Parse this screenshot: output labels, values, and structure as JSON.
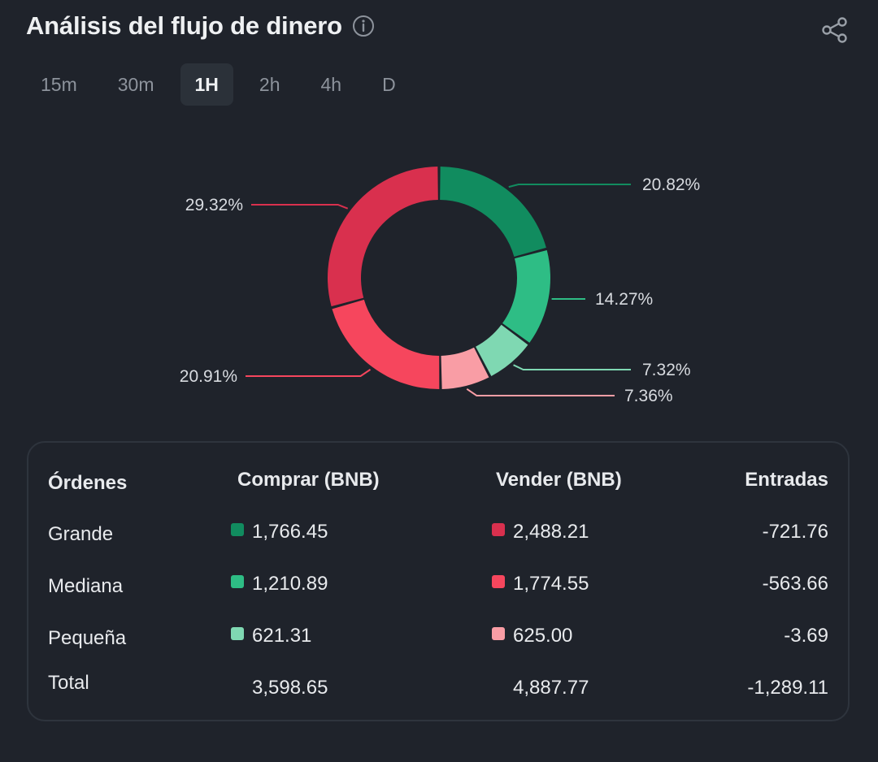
{
  "header": {
    "title": "Análisis del flujo de dinero",
    "info_icon": "info-icon",
    "share_icon": "share-icon"
  },
  "tabs": [
    {
      "label": "15m",
      "active": false
    },
    {
      "label": "30m",
      "active": false
    },
    {
      "label": "1H",
      "active": true
    },
    {
      "label": "2h",
      "active": false
    },
    {
      "label": "4h",
      "active": false
    },
    {
      "label": "D",
      "active": false
    }
  ],
  "chart_data": {
    "type": "pie",
    "variant": "donut",
    "slices": [
      {
        "label": "20.82%",
        "value": 20.82,
        "color": "#118c5f"
      },
      {
        "label": "14.27%",
        "value": 14.27,
        "color": "#2ebd85"
      },
      {
        "label": "7.32%",
        "value": 7.32,
        "color": "#7fd8b2"
      },
      {
        "label": "7.36%",
        "value": 7.36,
        "color": "#f99da5"
      },
      {
        "label": "20.91%",
        "value": 20.91,
        "color": "#f6465d"
      },
      {
        "label": "29.32%",
        "value": 29.32,
        "color": "#d9304e"
      }
    ]
  },
  "table": {
    "headers": [
      "Órdenes",
      "Comprar (BNB)",
      "Vender (BNB)",
      "Entradas"
    ],
    "rows": [
      {
        "label": "Grande",
        "buy": "1,766.45",
        "buy_color": "#118c5f",
        "sell": "2,488.21",
        "sell_color": "#d9304e",
        "inflow": "-721.76"
      },
      {
        "label": "Mediana",
        "buy": "1,210.89",
        "buy_color": "#2ebd85",
        "sell": "1,774.55",
        "sell_color": "#f6465d",
        "inflow": "-563.66"
      },
      {
        "label": "Pequeña",
        "buy": "621.31",
        "buy_color": "#7fd8b2",
        "sell": "625.00",
        "sell_color": "#f99da5",
        "inflow": "-3.69"
      }
    ],
    "total": {
      "label": "Total",
      "buy": "3,598.65",
      "sell": "4,887.77",
      "inflow": "-1,289.11"
    }
  }
}
